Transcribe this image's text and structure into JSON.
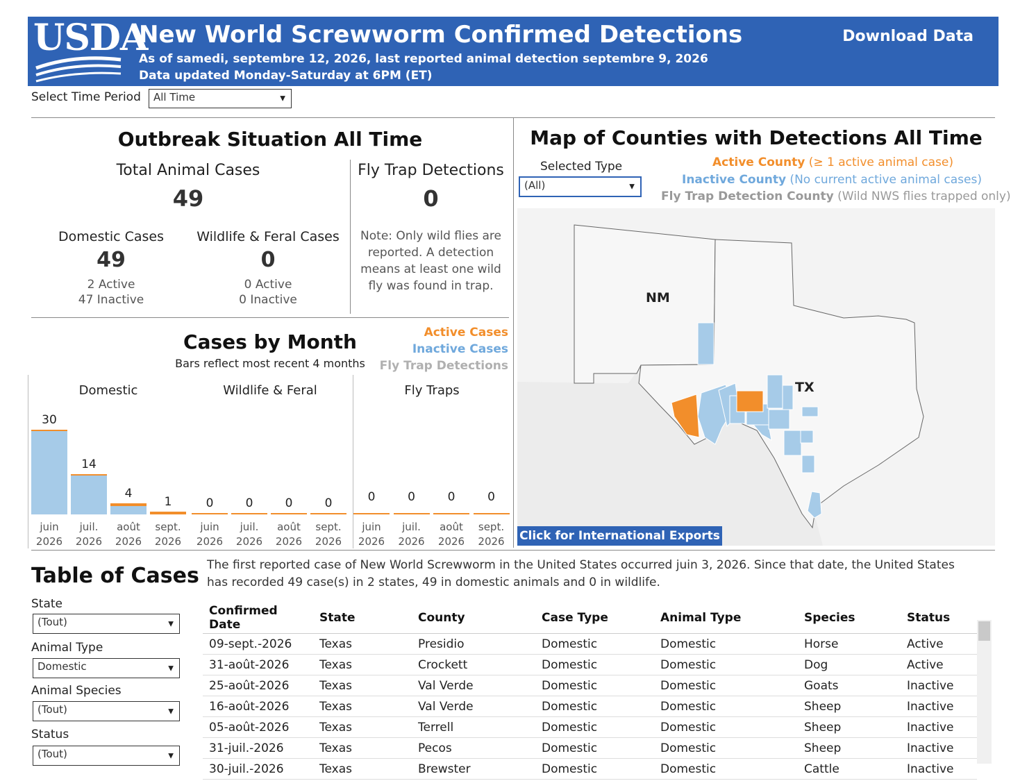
{
  "header": {
    "logo": "USDA",
    "title": "New World Screwworm Confirmed Detections",
    "subtitle1": "As of samedi, septembre 12, 2026, last reported animal detection septembre 9, 2026",
    "subtitle2": "Data updated Monday-Saturday at 6PM (ET)",
    "download_label": "Download Data"
  },
  "time_period": {
    "label": "Select Time Period",
    "value": "All Time"
  },
  "outbreak": {
    "title": "Outbreak Situation All Time",
    "total_label": "Total Animal Cases",
    "total_value": "49",
    "domestic_label": "Domestic Cases",
    "domestic_value": "49",
    "domestic_active": "2 Active",
    "domestic_inactive": "47 Inactive",
    "wildlife_label": "Wildlife & Feral Cases",
    "wildlife_value": "0",
    "wildlife_active": "0 Active",
    "wildlife_inactive": "0 Inactive",
    "flytrap_label": "Fly Trap Detections",
    "flytrap_value": "0",
    "flytrap_note": [
      "Note: Only wild flies are",
      "reported. A detection",
      "means at least one wild",
      "fly was found in trap."
    ]
  },
  "cases_by_month": {
    "title": "Cases by Month",
    "subtitle": "Bars reflect most recent 4 months",
    "legend": {
      "active": "Active Cases",
      "inactive": "Inactive Cases",
      "flytrap": "Fly Trap Detections"
    }
  },
  "colors": {
    "header": "#2f63b5",
    "active": "#f28e2b",
    "inactive": "#a6cbe8",
    "flytrap": "#aaaaaa"
  },
  "chart_data": {
    "type": "bar",
    "categories": [
      [
        "juin",
        "2026"
      ],
      [
        "juil.",
        "2026"
      ],
      [
        "août",
        "2026"
      ],
      [
        "sept.",
        "2026"
      ]
    ],
    "panels": [
      {
        "name": "Domestic",
        "values": [
          30,
          14,
          4,
          1
        ],
        "active": [
          0,
          0,
          1,
          1
        ]
      },
      {
        "name": "Wildlife & Feral",
        "values": [
          0,
          0,
          0,
          0
        ],
        "active": [
          0,
          0,
          0,
          0
        ]
      },
      {
        "name": "Fly Traps",
        "values": [
          0,
          0,
          0,
          0
        ],
        "active": [
          0,
          0,
          0,
          0
        ]
      }
    ],
    "ylim": [
      0,
      30
    ]
  },
  "map": {
    "title": "Map of Counties with Detections All Time",
    "type_label": "Selected Type",
    "type_value": "(All)",
    "legend_active_strong": "Active County",
    "legend_active_rest": " (≥ 1 active animal case)",
    "legend_inactive_strong": "Inactive County",
    "legend_inactive_rest": " (No current active animal cases)",
    "legend_flytrap_strong": "Fly Trap Detection County",
    "legend_flytrap_rest": " (Wild NWS flies trapped only)",
    "state_nm": "NM",
    "state_tx": "TX",
    "export_label": "Click for International Exports"
  },
  "table": {
    "title": "Table of Cases",
    "summary": "The first reported case of New World Screwworm in the United States occurred juin 3, 2026. Since that date, the United States has recorded 49 case(s) in 2 states, 49 in domestic animals and 0 in wildlife.",
    "filters": [
      {
        "label": "State",
        "value": "(Tout)"
      },
      {
        "label": "Animal Type",
        "value": "Domestic"
      },
      {
        "label": "Animal Species",
        "value": "(Tout)"
      },
      {
        "label": "Status",
        "value": "(Tout)"
      }
    ],
    "columns": [
      "Confirmed Date",
      "State",
      "County",
      "Case Type",
      "Animal Type",
      "Species",
      "Status"
    ],
    "rows": [
      [
        "09-sept.-2026",
        "Texas",
        "Presidio",
        "Domestic",
        "Domestic",
        "Horse",
        "Active"
      ],
      [
        "31-août-2026",
        "Texas",
        "Crockett",
        "Domestic",
        "Domestic",
        "Dog",
        "Active"
      ],
      [
        "25-août-2026",
        "Texas",
        "Val Verde",
        "Domestic",
        "Domestic",
        "Goats",
        "Inactive"
      ],
      [
        "16-août-2026",
        "Texas",
        "Val Verde",
        "Domestic",
        "Domestic",
        "Sheep",
        "Inactive"
      ],
      [
        "05-août-2026",
        "Texas",
        "Terrell",
        "Domestic",
        "Domestic",
        "Sheep",
        "Inactive"
      ],
      [
        "31-juil.-2026",
        "Texas",
        "Pecos",
        "Domestic",
        "Domestic",
        "Sheep",
        "Inactive"
      ],
      [
        "30-juil.-2026",
        "Texas",
        "Brewster",
        "Domestic",
        "Domestic",
        "Cattle",
        "Inactive"
      ]
    ]
  }
}
